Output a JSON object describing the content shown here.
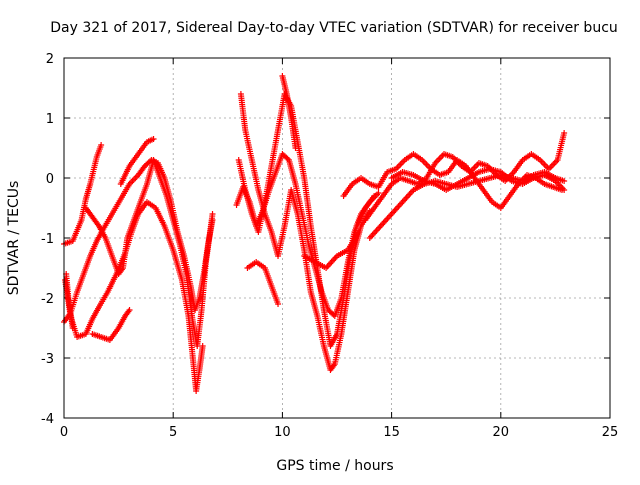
{
  "chart_data": {
    "type": "scatter",
    "title": "Day 321 of 2017, Sidereal Day-to-day VTEC variation (SDTVAR) for receiver bucu",
    "xlabel": "GPS time / hours",
    "ylabel": "SDTVAR / TECUs",
    "xlim": [
      0,
      25
    ],
    "ylim": [
      -4,
      2
    ],
    "x_ticks": [
      "0",
      "5",
      "10",
      "15",
      "20",
      "25"
    ],
    "y_ticks": [
      "-4",
      "-3",
      "-2",
      "-1",
      "0",
      "1",
      "2"
    ],
    "grid": true,
    "marker": "plus",
    "color": "#ff0000",
    "series": [
      {
        "points": [
          [
            0,
            -1.1
          ],
          [
            0.4,
            -1.05
          ],
          [
            0.8,
            -0.7
          ],
          [
            1.0,
            -0.35
          ],
          [
            1.2,
            -0.1
          ],
          [
            1.5,
            0.35
          ],
          [
            1.7,
            0.55
          ]
        ]
      },
      {
        "points": [
          [
            0.05,
            -1.7
          ],
          [
            0.3,
            -2.3
          ],
          [
            0.6,
            -2.65
          ],
          [
            1.0,
            -2.6
          ],
          [
            1.3,
            -2.35
          ],
          [
            1.6,
            -2.15
          ],
          [
            2.0,
            -1.9
          ],
          [
            2.4,
            -1.6
          ],
          [
            2.8,
            -1.25
          ],
          [
            3.1,
            -0.9
          ],
          [
            3.4,
            -0.6
          ],
          [
            3.8,
            -0.4
          ],
          [
            4.2,
            -0.5
          ],
          [
            4.6,
            -0.8
          ],
          [
            5.0,
            -1.2
          ],
          [
            5.4,
            -1.7
          ],
          [
            5.7,
            -2.3
          ],
          [
            5.9,
            -3.0
          ],
          [
            6.05,
            -3.55
          ],
          [
            6.2,
            -3.2
          ],
          [
            6.35,
            -2.8
          ]
        ]
      },
      {
        "points": [
          [
            0,
            -2.4
          ],
          [
            0.3,
            -2.25
          ],
          [
            0.6,
            -1.9
          ],
          [
            0.9,
            -1.6
          ],
          [
            1.2,
            -1.3
          ],
          [
            1.5,
            -1.05
          ],
          [
            1.8,
            -0.85
          ],
          [
            2.2,
            -0.6
          ],
          [
            2.6,
            -0.35
          ],
          [
            3.0,
            -0.1
          ],
          [
            3.4,
            0.05
          ],
          [
            3.7,
            0.2
          ],
          [
            4.0,
            0.3
          ],
          [
            4.3,
            0.25
          ],
          [
            4.6,
            0.0
          ],
          [
            4.9,
            -0.4
          ],
          [
            5.2,
            -0.9
          ],
          [
            5.5,
            -1.3
          ],
          [
            5.8,
            -1.8
          ],
          [
            6.0,
            -2.2
          ],
          [
            6.2,
            -2.0
          ],
          [
            6.4,
            -1.6
          ],
          [
            6.6,
            -1.1
          ],
          [
            6.8,
            -0.7
          ]
        ]
      },
      {
        "points": [
          [
            0.1,
            -1.6
          ],
          [
            0.2,
            -2.0
          ],
          [
            0.4,
            -2.5
          ]
        ]
      },
      {
        "points": [
          [
            1.3,
            -2.6
          ],
          [
            1.7,
            -2.65
          ],
          [
            2.1,
            -2.7
          ],
          [
            2.5,
            -2.5
          ],
          [
            2.8,
            -2.3
          ],
          [
            3.0,
            -2.2
          ]
        ]
      },
      {
        "points": [
          [
            1.0,
            -0.5
          ],
          [
            1.3,
            -0.65
          ],
          [
            1.6,
            -0.8
          ],
          [
            1.9,
            -1.0
          ],
          [
            2.2,
            -1.3
          ],
          [
            2.5,
            -1.6
          ],
          [
            2.7,
            -1.5
          ],
          [
            2.9,
            -1.0
          ],
          [
            3.2,
            -0.7
          ],
          [
            3.5,
            -0.4
          ],
          [
            3.8,
            -0.1
          ],
          [
            4.1,
            0.3
          ],
          [
            4.4,
            0.0
          ],
          [
            4.7,
            -0.3
          ],
          [
            5.0,
            -0.7
          ],
          [
            5.3,
            -1.1
          ],
          [
            5.6,
            -1.6
          ],
          [
            5.9,
            -2.4
          ],
          [
            6.1,
            -2.8
          ],
          [
            6.3,
            -2.2
          ],
          [
            6.5,
            -1.4
          ],
          [
            6.8,
            -0.6
          ]
        ]
      },
      {
        "points": [
          [
            2.6,
            -0.1
          ],
          [
            3.0,
            0.2
          ],
          [
            3.4,
            0.4
          ],
          [
            3.8,
            0.6
          ],
          [
            4.1,
            0.65
          ]
        ]
      },
      {
        "points": [
          [
            7.9,
            -0.45
          ],
          [
            8.2,
            -0.15
          ],
          [
            8.5,
            -0.4
          ],
          [
            8.8,
            -0.8
          ],
          [
            9.1,
            -0.55
          ],
          [
            9.4,
            -0.2
          ],
          [
            9.7,
            0.1
          ],
          [
            10.0,
            0.4
          ],
          [
            10.3,
            0.3
          ],
          [
            10.6,
            -0.1
          ],
          [
            10.9,
            -0.6
          ],
          [
            11.2,
            -1.1
          ],
          [
            11.5,
            -1.5
          ],
          [
            11.8,
            -1.9
          ],
          [
            12.1,
            -2.2
          ],
          [
            12.4,
            -2.3
          ],
          [
            12.7,
            -2.0
          ],
          [
            13.0,
            -1.4
          ],
          [
            13.3,
            -0.9
          ],
          [
            13.6,
            -0.6
          ],
          [
            14.0,
            -0.4
          ],
          [
            14.4,
            -0.25
          ]
        ]
      },
      {
        "points": [
          [
            8.0,
            0.3
          ],
          [
            8.3,
            -0.2
          ],
          [
            8.6,
            -0.6
          ],
          [
            8.9,
            -0.9
          ],
          [
            9.2,
            -0.4
          ],
          [
            9.5,
            0.2
          ],
          [
            9.8,
            0.8
          ],
          [
            10.1,
            1.4
          ],
          [
            10.4,
            1.2
          ],
          [
            10.7,
            0.6
          ],
          [
            11.0,
            0.0
          ],
          [
            11.3,
            -0.8
          ],
          [
            11.6,
            -1.5
          ],
          [
            11.9,
            -2.2
          ],
          [
            12.2,
            -2.8
          ],
          [
            12.5,
            -2.6
          ],
          [
            12.8,
            -2.0
          ],
          [
            13.1,
            -1.3
          ],
          [
            13.4,
            -0.8
          ],
          [
            13.8,
            -0.5
          ],
          [
            14.2,
            -0.3
          ]
        ]
      },
      {
        "points": [
          [
            8.1,
            1.4
          ],
          [
            8.3,
            0.8
          ],
          [
            8.6,
            0.3
          ],
          [
            8.9,
            -0.2
          ],
          [
            9.2,
            -0.6
          ],
          [
            9.5,
            -0.9
          ],
          [
            9.8,
            -1.3
          ],
          [
            10.1,
            -0.8
          ],
          [
            10.4,
            -0.2
          ],
          [
            10.7,
            -0.6
          ],
          [
            11.0,
            -1.2
          ],
          [
            11.3,
            -1.9
          ],
          [
            11.6,
            -2.3
          ],
          [
            11.9,
            -2.8
          ],
          [
            12.2,
            -3.2
          ],
          [
            12.4,
            -3.1
          ],
          [
            12.7,
            -2.6
          ],
          [
            13.0,
            -1.9
          ],
          [
            13.3,
            -1.2
          ],
          [
            13.6,
            -0.8
          ],
          [
            14.0,
            -0.55
          ]
        ]
      },
      {
        "points": [
          [
            8.4,
            -1.5
          ],
          [
            8.8,
            -1.4
          ],
          [
            9.2,
            -1.5
          ],
          [
            9.5,
            -1.8
          ],
          [
            9.8,
            -2.1
          ]
        ]
      },
      {
        "points": [
          [
            10.0,
            1.7
          ],
          [
            10.2,
            1.4
          ],
          [
            10.4,
            1.0
          ],
          [
            10.6,
            0.5
          ]
        ]
      },
      {
        "points": [
          [
            11.0,
            -1.3
          ],
          [
            11.5,
            -1.4
          ],
          [
            12.0,
            -1.5
          ],
          [
            12.5,
            -1.3
          ],
          [
            13.0,
            -1.2
          ],
          [
            13.5,
            -0.9
          ]
        ]
      },
      {
        "points": [
          [
            12.8,
            -0.3
          ],
          [
            13.2,
            -0.1
          ],
          [
            13.6,
            0.0
          ],
          [
            14.0,
            -0.1
          ],
          [
            14.4,
            -0.15
          ],
          [
            14.8,
            0.1
          ],
          [
            15.2,
            0.15
          ],
          [
            15.6,
            0.3
          ],
          [
            16.0,
            0.4
          ],
          [
            16.4,
            0.3
          ],
          [
            16.8,
            0.15
          ],
          [
            17.2,
            0.05
          ],
          [
            17.6,
            0.1
          ],
          [
            18.0,
            0.3
          ],
          [
            18.4,
            0.2
          ],
          [
            18.8,
            0.0
          ],
          [
            19.2,
            -0.2
          ],
          [
            19.6,
            -0.4
          ],
          [
            20.0,
            -0.5
          ],
          [
            20.4,
            -0.3
          ],
          [
            20.8,
            -0.1
          ],
          [
            21.2,
            0.05
          ],
          [
            21.6,
            0.0
          ],
          [
            22.0,
            -0.1
          ],
          [
            22.4,
            -0.15
          ],
          [
            22.8,
            -0.2
          ]
        ]
      },
      {
        "points": [
          [
            13.8,
            -0.7
          ],
          [
            14.2,
            -0.5
          ],
          [
            14.6,
            -0.3
          ],
          [
            15.0,
            -0.1
          ],
          [
            15.4,
            0.0
          ],
          [
            15.8,
            -0.05
          ],
          [
            16.2,
            -0.1
          ],
          [
            16.6,
            0.0
          ],
          [
            17.0,
            0.25
          ],
          [
            17.4,
            0.4
          ],
          [
            17.8,
            0.35
          ],
          [
            18.2,
            0.2
          ],
          [
            18.6,
            0.1
          ],
          [
            19.0,
            0.25
          ],
          [
            19.4,
            0.2
          ],
          [
            19.8,
            0.05
          ],
          [
            20.2,
            -0.05
          ],
          [
            20.6,
            0.1
          ],
          [
            21.0,
            0.3
          ],
          [
            21.4,
            0.4
          ],
          [
            21.8,
            0.3
          ],
          [
            22.2,
            0.15
          ],
          [
            22.6,
            0.3
          ],
          [
            22.9,
            0.75
          ]
        ]
      },
      {
        "points": [
          [
            14.0,
            -1.0
          ],
          [
            14.5,
            -0.8
          ],
          [
            15.0,
            -0.6
          ],
          [
            15.5,
            -0.4
          ],
          [
            16.0,
            -0.2
          ],
          [
            16.5,
            -0.1
          ],
          [
            17.0,
            -0.05
          ],
          [
            17.5,
            -0.1
          ],
          [
            18.0,
            -0.15
          ],
          [
            18.5,
            -0.1
          ],
          [
            19.0,
            -0.05
          ],
          [
            19.5,
            0.0
          ],
          [
            20.0,
            0.05
          ],
          [
            20.5,
            0.0
          ],
          [
            21.0,
            -0.05
          ],
          [
            21.5,
            0.05
          ],
          [
            22.0,
            0.1
          ],
          [
            22.5,
            0.0
          ],
          [
            22.9,
            -0.05
          ]
        ]
      },
      {
        "points": [
          [
            15.0,
            0.0
          ],
          [
            15.5,
            0.1
          ],
          [
            16.0,
            0.05
          ],
          [
            16.5,
            -0.05
          ],
          [
            17.0,
            -0.1
          ],
          [
            17.5,
            -0.2
          ],
          [
            18.0,
            -0.1
          ],
          [
            18.5,
            0.0
          ],
          [
            19.0,
            0.1
          ],
          [
            19.5,
            0.15
          ],
          [
            20.0,
            0.1
          ],
          [
            20.5,
            -0.05
          ],
          [
            21.0,
            -0.1
          ],
          [
            21.5,
            0.0
          ],
          [
            22.0,
            0.05
          ],
          [
            22.5,
            -0.05
          ],
          [
            22.9,
            -0.2
          ]
        ]
      }
    ]
  }
}
